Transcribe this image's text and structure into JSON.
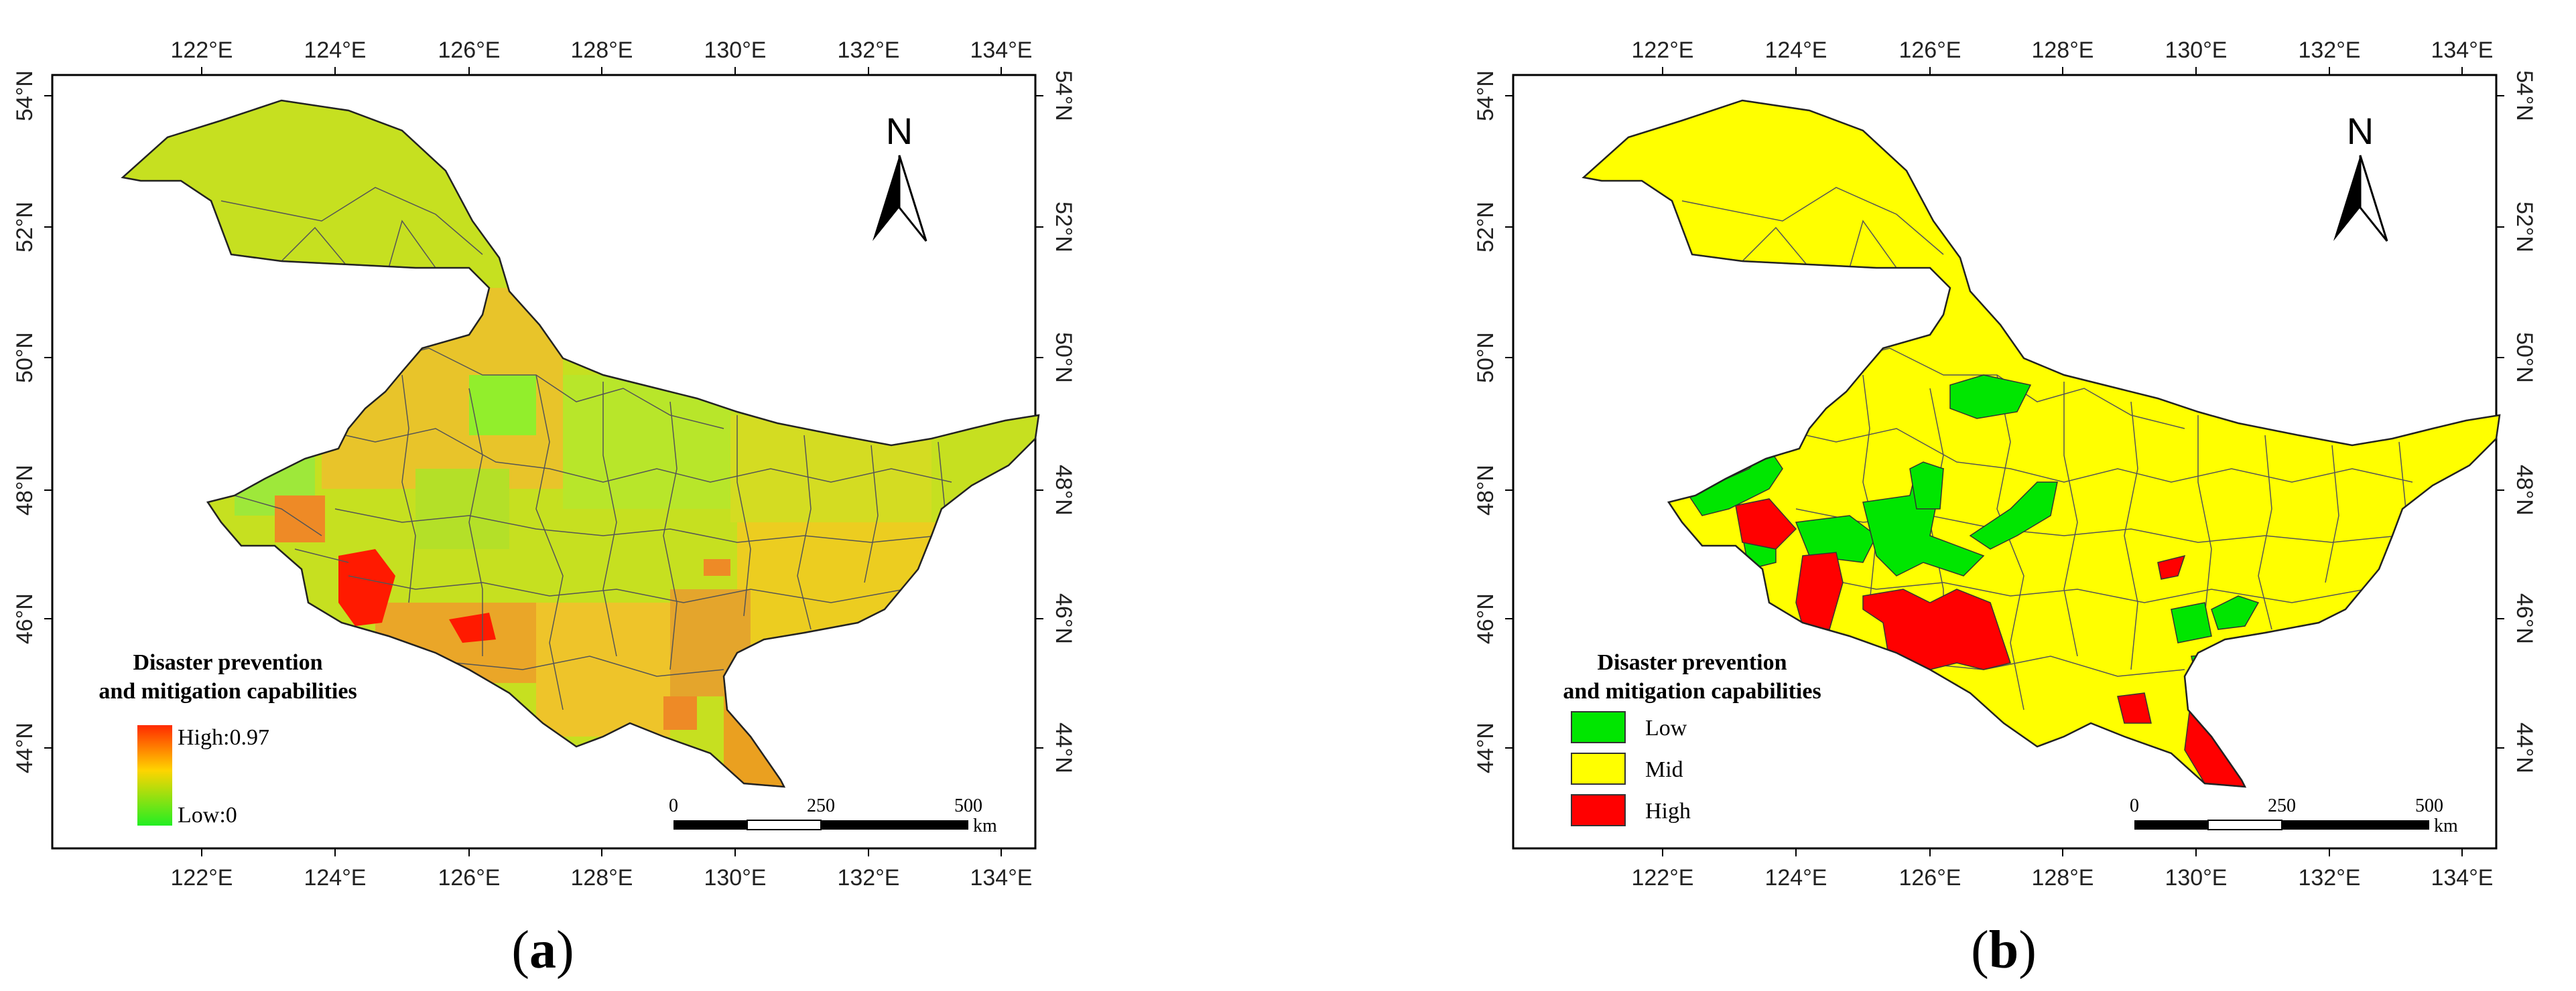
{
  "colors": {
    "high": "#ff0000",
    "mid": "#ffff00",
    "low": "#00e600",
    "gradient_high": "#ff2a00",
    "gradient_mid": "#ffd400",
    "gradient_low": "#22ee22"
  },
  "longitude_ticks": [
    "122°E",
    "124°E",
    "126°E",
    "128°E",
    "130°E",
    "132°E",
    "134°E"
  ],
  "latitude_ticks": [
    "54°N",
    "52°N",
    "50°N",
    "48°N",
    "46°N",
    "44°N"
  ],
  "north_label": "N",
  "scale_bar": {
    "labels": [
      "0",
      "250",
      "500"
    ],
    "unit": "km"
  },
  "map_a": {
    "caption_open": "(",
    "caption_letter": "a",
    "caption_close": ")",
    "legend_title_line1": "Disaster prevention",
    "legend_title_line2": "and mitigation capabilities",
    "legend_high": "High:0.97",
    "legend_low": "Low:0",
    "legend_high_value": 0.97,
    "legend_low_value": 0
  },
  "map_b": {
    "caption_open": "(",
    "caption_letter": "b",
    "caption_close": ")",
    "legend_title_line1": "Disaster prevention",
    "legend_title_line2": "and mitigation capabilities",
    "classes": [
      "Low",
      "Mid",
      "High"
    ]
  }
}
